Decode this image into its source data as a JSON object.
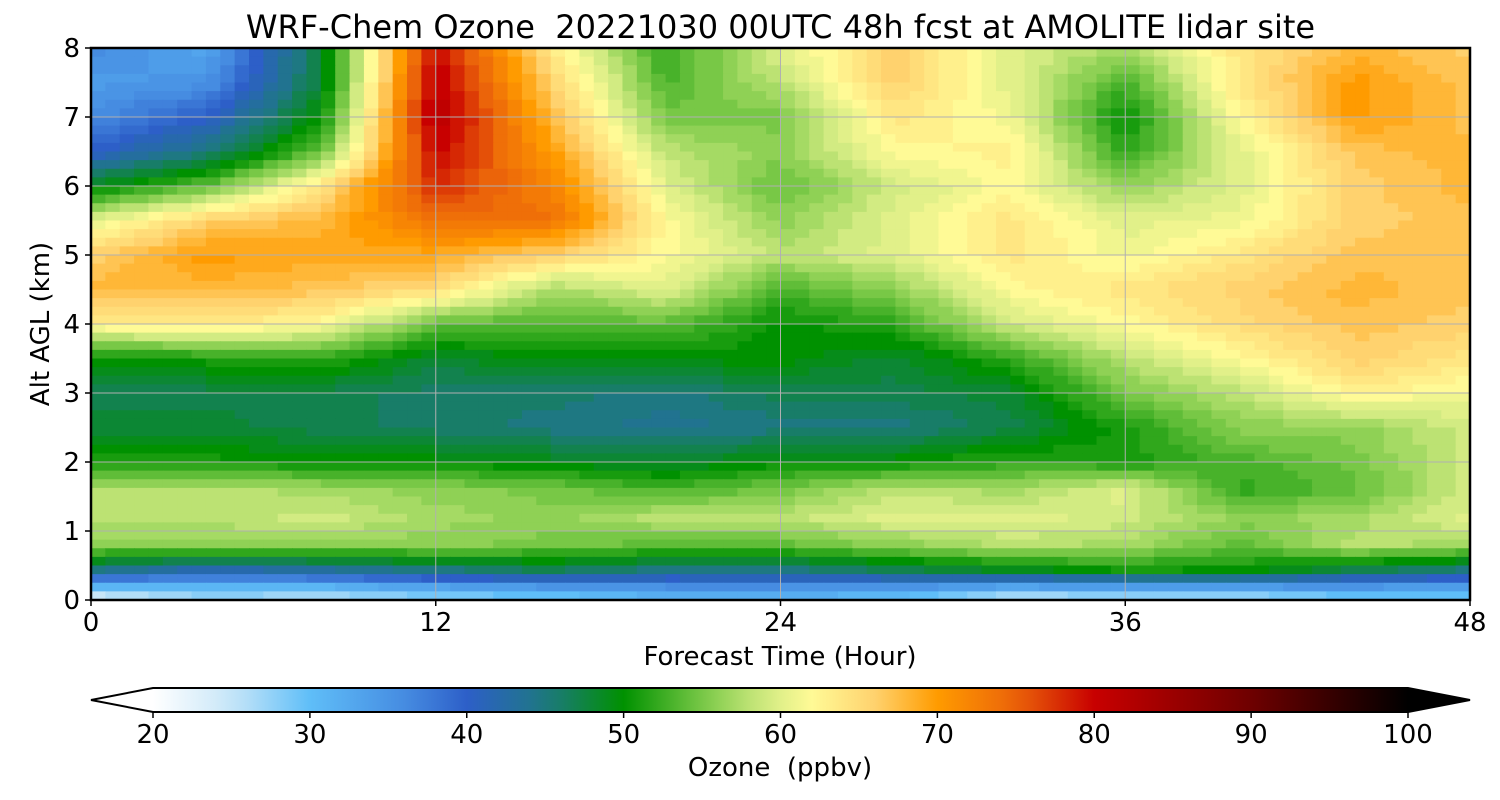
{
  "chart_data": {
    "type": "heatmap",
    "title": "WRF-Chem Ozone  20221030 00UTC 48h fcst at AMOLITE lidar site",
    "xlabel": "Forecast Time (Hour)",
    "ylabel": "Alt AGL (km)",
    "xlim": [
      0,
      48
    ],
    "ylim": [
      0,
      8
    ],
    "xticks": [
      0,
      12,
      24,
      36,
      48
    ],
    "yticks": [
      0,
      1,
      2,
      3,
      4,
      5,
      6,
      7,
      8
    ],
    "grid": true,
    "x": [
      0,
      4,
      8,
      12,
      16,
      20,
      24,
      28,
      32,
      36,
      40,
      44,
      48
    ],
    "y": [
      0.1,
      0.4,
      0.8,
      1.2,
      1.6,
      2.0,
      2.5,
      3.0,
      3.5,
      4.0,
      4.5,
      5.0,
      5.5,
      6.0,
      6.5,
      7.0,
      7.5,
      8.0
    ],
    "values": [
      [
        25,
        28,
        27,
        29,
        30,
        32,
        32,
        31,
        27,
        28,
        28,
        30,
        30
      ],
      [
        44,
        40,
        42,
        44,
        46,
        44,
        44,
        46,
        48,
        50,
        50,
        46,
        44
      ],
      [
        56,
        56,
        56,
        56,
        55,
        54,
        54,
        56,
        58,
        57,
        54,
        58,
        57
      ],
      [
        58,
        58,
        59,
        57,
        56,
        58,
        58,
        60,
        60,
        59,
        56,
        57,
        60
      ],
      [
        58,
        58,
        57,
        56,
        55,
        53,
        55,
        58,
        57,
        60,
        52,
        54,
        59
      ],
      [
        51,
        51,
        50,
        50,
        49,
        48,
        50,
        50,
        52,
        51,
        53,
        55,
        59
      ],
      [
        48,
        48,
        47,
        46,
        45,
        44,
        45,
        45,
        47,
        51,
        56,
        56,
        59
      ],
      [
        47,
        47,
        47,
        46,
        46,
        45,
        47,
        47,
        48,
        55,
        58,
        63,
        61
      ],
      [
        50,
        51,
        52,
        48,
        50,
        50,
        50,
        48,
        52,
        58,
        62,
        66,
        64
      ],
      [
        63,
        64,
        62,
        54,
        53,
        54,
        50,
        52,
        59,
        62,
        65,
        67,
        66
      ],
      [
        68,
        68,
        67,
        65,
        57,
        60,
        53,
        56,
        62,
        64,
        66,
        68,
        67
      ],
      [
        66,
        70,
        69,
        69,
        66,
        62,
        58,
        60,
        64,
        61,
        64,
        67,
        67
      ],
      [
        60,
        66,
        68,
        74,
        74,
        62,
        56,
        60,
        64,
        60,
        61,
        66,
        67
      ],
      [
        49,
        54,
        64,
        78,
        72,
        60,
        54,
        59,
        62,
        56,
        60,
        66,
        68
      ],
      [
        40,
        45,
        54,
        80,
        70,
        58,
        56,
        62,
        63,
        52,
        60,
        67,
        68
      ],
      [
        36,
        40,
        50,
        82,
        68,
        55,
        55,
        64,
        61,
        50,
        62,
        70,
        67
      ],
      [
        34,
        35,
        48,
        81,
        66,
        53,
        58,
        66,
        60,
        53,
        64,
        70,
        67
      ],
      [
        36,
        33,
        48,
        80,
        64,
        52,
        60,
        66,
        60,
        57,
        64,
        68,
        66
      ]
    ],
    "colorbar": {
      "label": "Ozone  (ppbv)",
      "min": 20,
      "max": 100,
      "ticks": [
        20,
        30,
        40,
        50,
        60,
        70,
        80,
        90,
        100
      ],
      "extend": "both"
    }
  }
}
